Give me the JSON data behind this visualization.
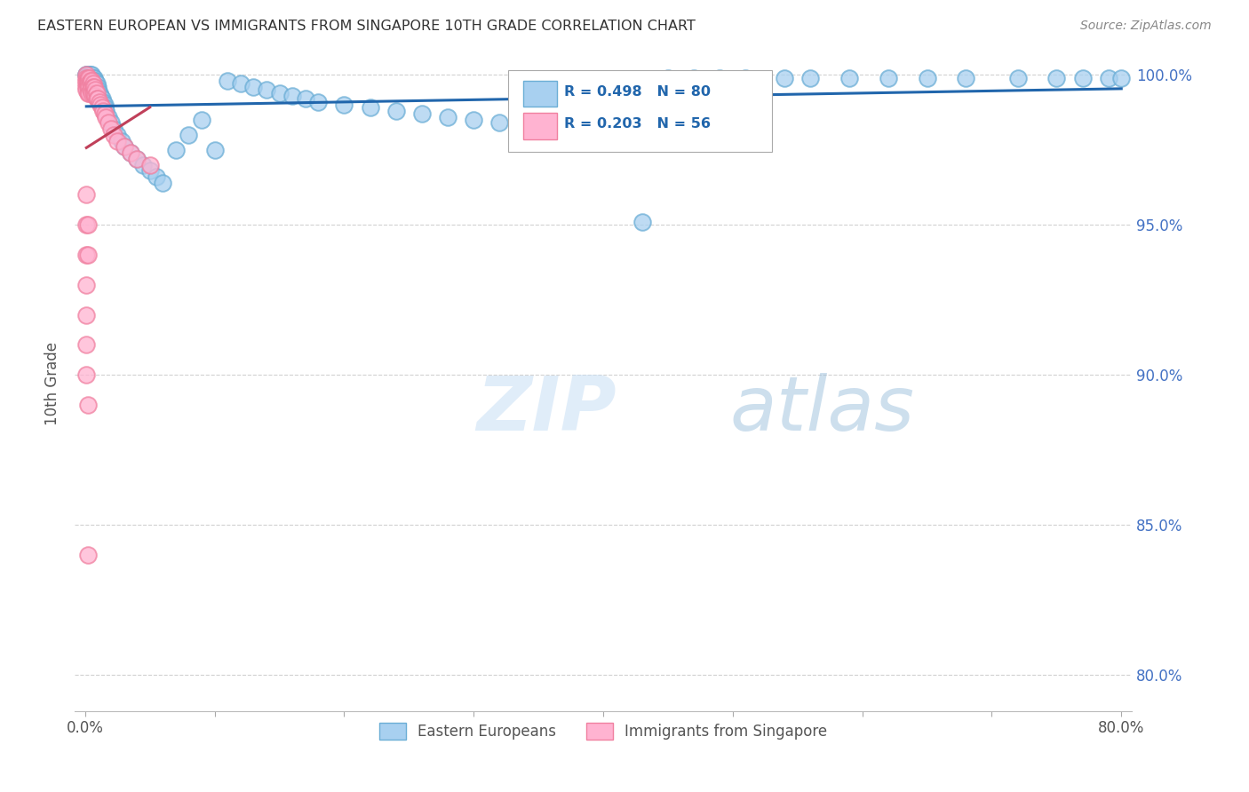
{
  "title": "EASTERN EUROPEAN VS IMMIGRANTS FROM SINGAPORE 10TH GRADE CORRELATION CHART",
  "source": "Source: ZipAtlas.com",
  "ylabel": "10th Grade",
  "xlim": [
    -0.008,
    0.808
  ],
  "ylim": [
    0.788,
    1.006
  ],
  "yticks": [
    0.8,
    0.85,
    0.9,
    0.95,
    1.0
  ],
  "ytick_labels": [
    "80.0%",
    "85.0%",
    "90.0%",
    "95.0%",
    "100.0%"
  ],
  "xticks": [
    0.0,
    0.1,
    0.2,
    0.3,
    0.4,
    0.5,
    0.6,
    0.7,
    0.8
  ],
  "xtick_labels": [
    "0.0%",
    "",
    "",
    "",
    "",
    "",
    "",
    "",
    "80.0%"
  ],
  "blue_R": 0.498,
  "blue_N": 80,
  "pink_R": 0.203,
  "pink_N": 56,
  "blue_face": "#a8d0f0",
  "blue_edge": "#6baed6",
  "pink_face": "#ffb3d1",
  "pink_edge": "#f080a0",
  "trend_blue": "#2166ac",
  "trend_pink": "#c0405a",
  "grid_color": "#cccccc",
  "right_tick_color": "#4472c4",
  "legend_label_blue": "Eastern Europeans",
  "legend_label_pink": "Immigrants from Singapore",
  "blue_x": [
    0.001,
    0.001,
    0.002,
    0.002,
    0.002,
    0.003,
    0.003,
    0.003,
    0.003,
    0.004,
    0.004,
    0.004,
    0.005,
    0.005,
    0.005,
    0.006,
    0.006,
    0.007,
    0.007,
    0.008,
    0.009,
    0.01,
    0.01,
    0.011,
    0.012,
    0.013,
    0.014,
    0.015,
    0.015,
    0.016,
    0.018,
    0.02,
    0.022,
    0.025,
    0.028,
    0.03,
    0.035,
    0.04,
    0.045,
    0.05,
    0.055,
    0.06,
    0.07,
    0.08,
    0.09,
    0.1,
    0.11,
    0.12,
    0.13,
    0.14,
    0.15,
    0.16,
    0.17,
    0.18,
    0.2,
    0.22,
    0.24,
    0.26,
    0.28,
    0.3,
    0.32,
    0.35,
    0.38,
    0.4,
    0.43,
    0.45,
    0.47,
    0.49,
    0.51,
    0.54,
    0.56,
    0.59,
    0.62,
    0.65,
    0.68,
    0.72,
    0.75,
    0.77,
    0.79,
    0.8
  ],
  "blue_y": [
    1.0,
    1.0,
    1.0,
    1.0,
    0.999,
    1.0,
    1.0,
    0.999,
    0.998,
    1.0,
    0.999,
    0.998,
    1.0,
    0.999,
    0.998,
    0.999,
    0.998,
    0.999,
    0.998,
    0.998,
    0.997,
    0.996,
    0.995,
    0.994,
    0.993,
    0.992,
    0.991,
    0.99,
    0.989,
    0.988,
    0.986,
    0.984,
    0.982,
    0.98,
    0.978,
    0.976,
    0.974,
    0.972,
    0.97,
    0.968,
    0.966,
    0.964,
    0.975,
    0.98,
    0.985,
    0.975,
    0.998,
    0.997,
    0.996,
    0.995,
    0.994,
    0.993,
    0.992,
    0.991,
    0.99,
    0.989,
    0.988,
    0.987,
    0.986,
    0.985,
    0.984,
    0.983,
    0.982,
    0.981,
    0.951,
    0.999,
    0.999,
    0.999,
    0.999,
    0.999,
    0.999,
    0.999,
    0.999,
    0.999,
    0.999,
    0.999,
    0.999,
    0.999,
    0.999,
    0.999
  ],
  "pink_x": [
    0.001,
    0.001,
    0.001,
    0.001,
    0.001,
    0.001,
    0.002,
    0.002,
    0.002,
    0.002,
    0.002,
    0.003,
    0.003,
    0.003,
    0.003,
    0.004,
    0.004,
    0.004,
    0.005,
    0.005,
    0.005,
    0.006,
    0.006,
    0.006,
    0.007,
    0.007,
    0.008,
    0.008,
    0.009,
    0.009,
    0.01,
    0.011,
    0.012,
    0.013,
    0.014,
    0.015,
    0.016,
    0.018,
    0.02,
    0.022,
    0.025,
    0.03,
    0.035,
    0.04,
    0.05,
    0.001,
    0.001,
    0.001,
    0.001,
    0.001,
    0.002,
    0.002,
    0.001,
    0.001,
    0.002,
    0.002
  ],
  "pink_y": [
    1.0,
    0.999,
    0.998,
    0.997,
    0.996,
    0.995,
    0.999,
    0.998,
    0.997,
    0.996,
    0.994,
    0.999,
    0.997,
    0.996,
    0.994,
    0.998,
    0.997,
    0.995,
    0.998,
    0.996,
    0.994,
    0.997,
    0.996,
    0.994,
    0.996,
    0.994,
    0.995,
    0.993,
    0.994,
    0.992,
    0.992,
    0.991,
    0.99,
    0.989,
    0.988,
    0.987,
    0.986,
    0.984,
    0.982,
    0.98,
    0.978,
    0.976,
    0.974,
    0.972,
    0.97,
    0.96,
    0.95,
    0.94,
    0.93,
    0.92,
    0.95,
    0.94,
    0.91,
    0.9,
    0.89,
    0.84
  ]
}
